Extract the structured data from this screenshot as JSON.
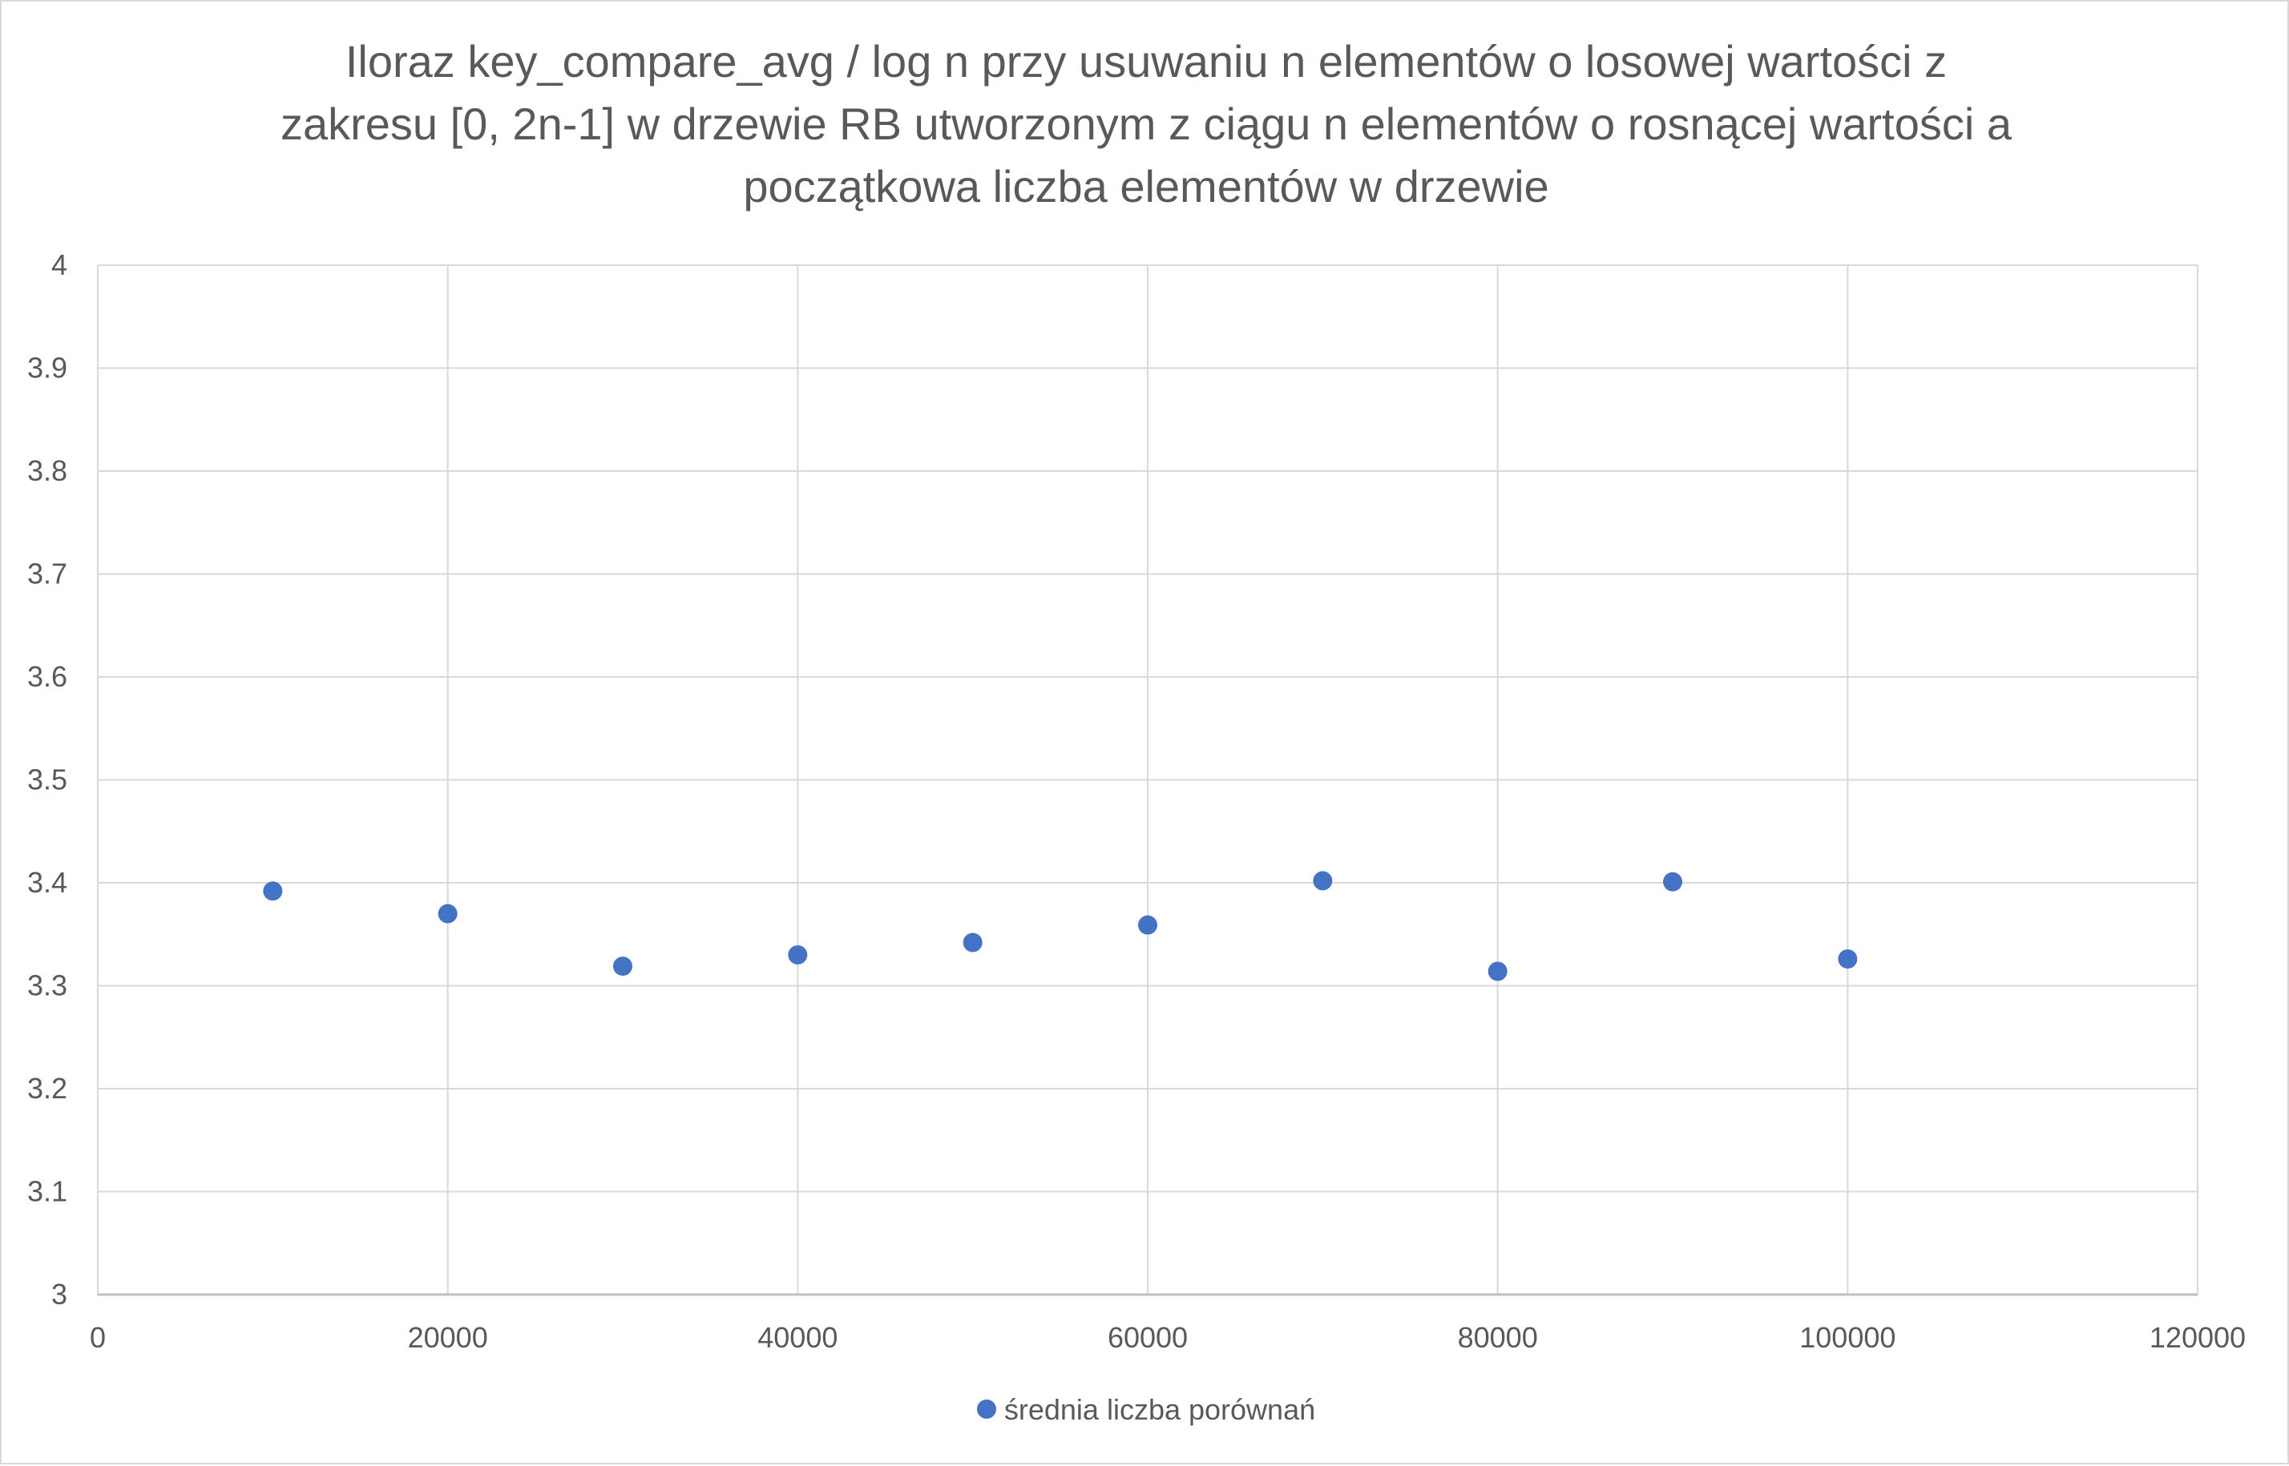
{
  "chart_data": {
    "type": "scatter",
    "title_lines": [
      "Iloraz key_compare_avg / log n przy usuwaniu n elementów o losowej wartości z",
      "zakresu [0, 2n-1] w drzewie RB utworzonym z ciągu n elementów o rosnącej wartości a",
      "początkowa liczba elementów w drzewie"
    ],
    "xlabel": "",
    "ylabel": "",
    "xlim": [
      0,
      120000
    ],
    "ylim": [
      3,
      4
    ],
    "x_ticks": [
      0,
      20000,
      40000,
      60000,
      80000,
      100000,
      120000
    ],
    "y_ticks": [
      3,
      3.1,
      3.2,
      3.3,
      3.4,
      3.5,
      3.6,
      3.7,
      3.8,
      3.9,
      4
    ],
    "x_tick_labels": [
      "0",
      "20000",
      "40000",
      "60000",
      "80000",
      "100000",
      "120000"
    ],
    "y_tick_labels": [
      "3",
      "3.1",
      "3.2",
      "3.3",
      "3.4",
      "3.5",
      "3.6",
      "3.7",
      "3.8",
      "3.9",
      "4"
    ],
    "grid": true,
    "legend_position": "bottom",
    "series": [
      {
        "name": "średnia liczba porównań",
        "color": "#4472c4",
        "x": [
          10000,
          20000,
          30000,
          40000,
          50000,
          60000,
          70000,
          80000,
          90000,
          100000
        ],
        "y": [
          3.392,
          3.37,
          3.319,
          3.33,
          3.342,
          3.359,
          3.402,
          3.314,
          3.401,
          3.326
        ]
      }
    ]
  }
}
